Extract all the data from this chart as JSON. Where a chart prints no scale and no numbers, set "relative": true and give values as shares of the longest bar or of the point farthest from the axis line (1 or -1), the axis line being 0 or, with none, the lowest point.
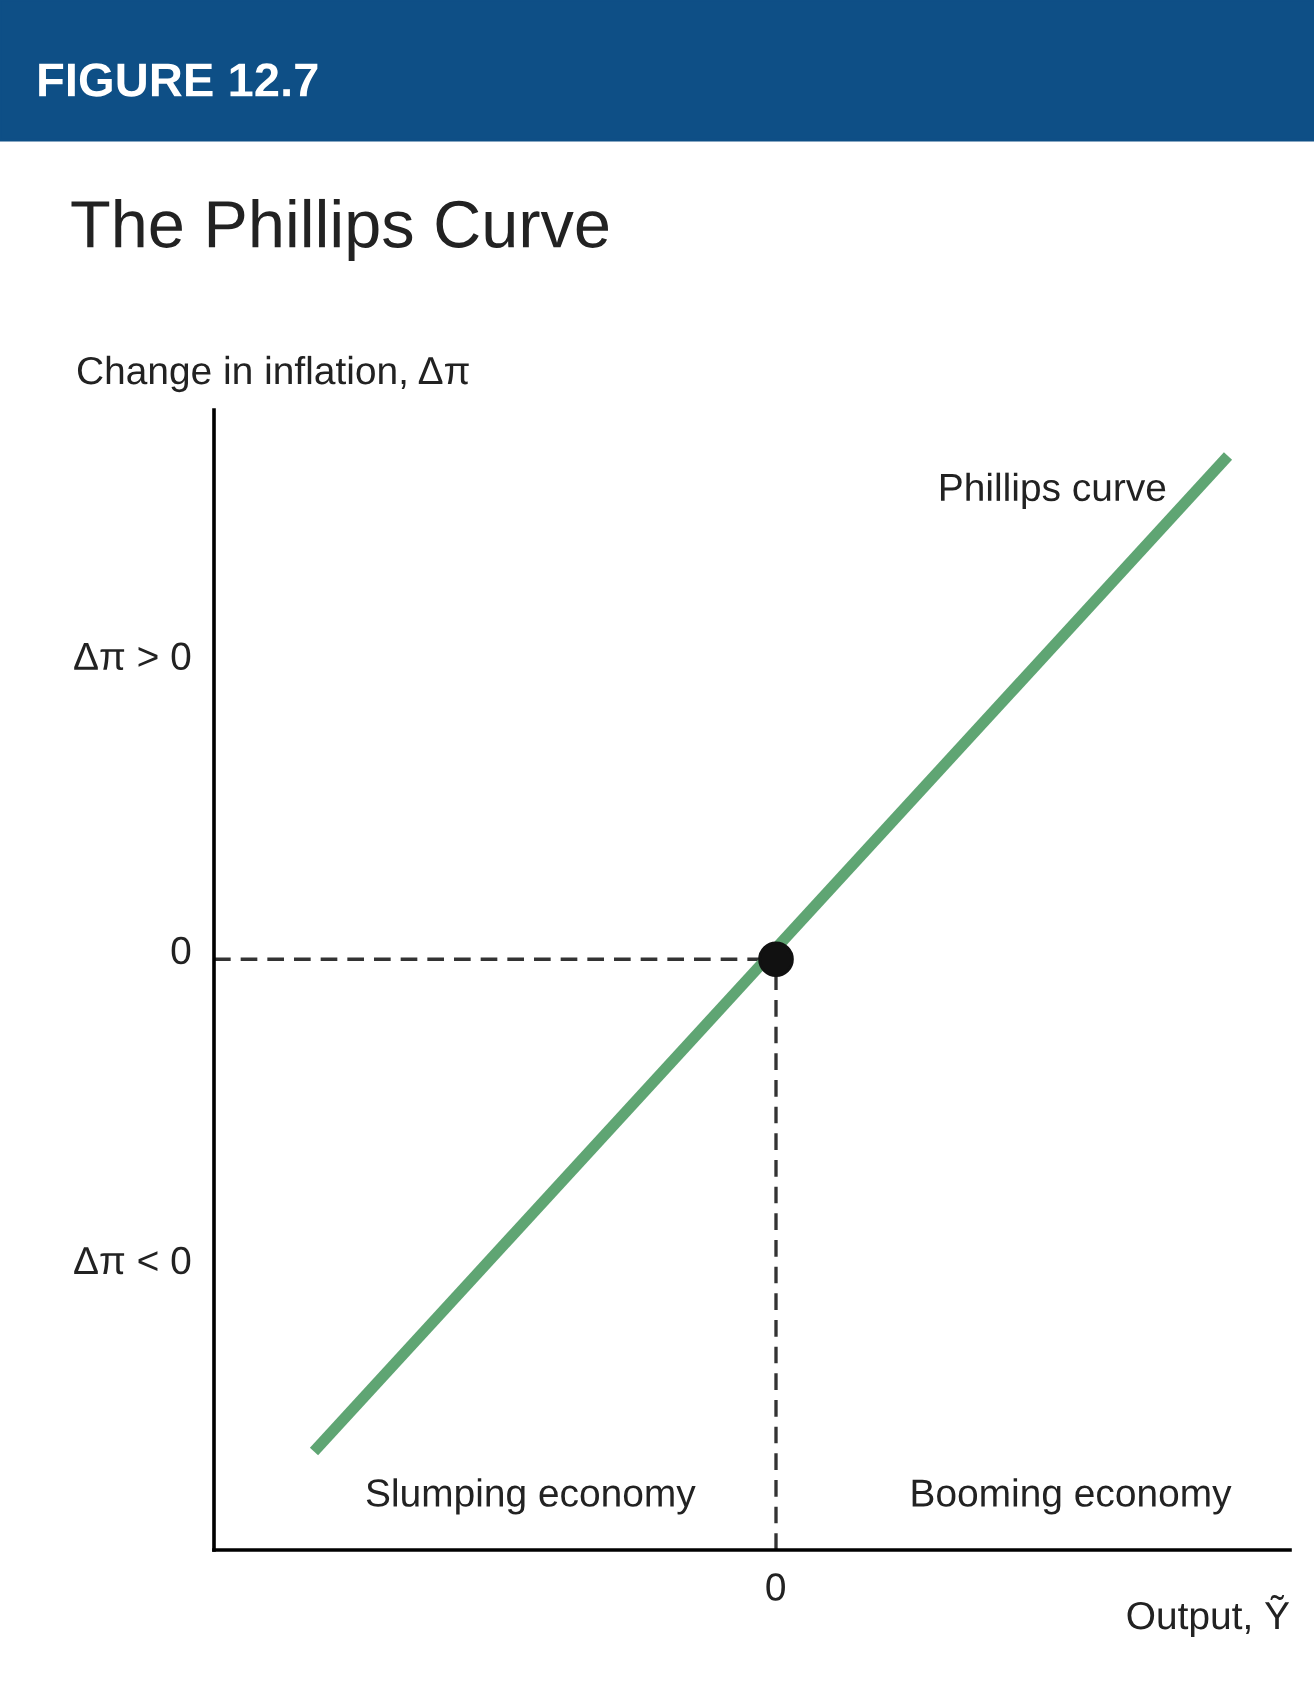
{
  "chart_data": {
    "type": "line",
    "title": "The Phillips Curve",
    "xlabel": "Output, Ỹ",
    "ylabel": "Change in inflation, Δπ",
    "relative": true,
    "annotations": [
      "FIGURE 12.7",
      "Slumping economy",
      "Booming economy",
      "Δπ > 0",
      "0",
      "Δπ < 0",
      "0"
    ],
    "categories": [
      null,
      null
    ],
    "series": [
      {
        "name": "Phillips curve",
        "color": "#5fa573",
        "values": [
          0.09,
          1
        ]
      }
    ],
    "ref_lines": [
      {
        "axis": "y",
        "value": 0.54,
        "color": "#333333",
        "line_style": "dashed"
      }
    ],
    "grid": false
  }
}
